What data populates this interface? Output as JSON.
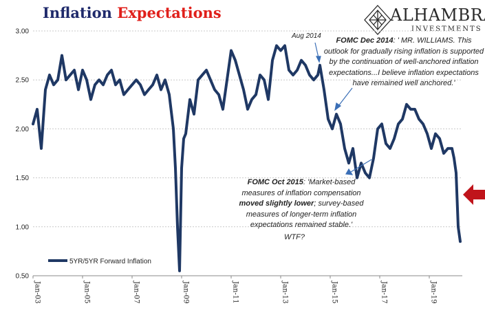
{
  "header": {
    "title_part1": "Inflation",
    "title_part2": "Expectations",
    "logo_name": "ALHAMBRA",
    "logo_sub": "INVESTMENTS"
  },
  "annotations": {
    "aug2014": "Aug 2014",
    "fomc_dec2014": {
      "lead": "FOMC Dec 2014",
      "text": ": ' MR. WILLIAMS. This outlook for gradually rising inflation is supported by the continuation of well-anchored inflation expectations...I believe inflation expectations have remained well anchored.'"
    },
    "fomc_oct2015": {
      "lead": "FOMC Oct 2015",
      "text1": ": 'Market-based measures of inflation compensation ",
      "bold": "moved slightly lower",
      "text2": "; survey-based measures of longer-term inflation expectations remained stable.'"
    },
    "wtf": "WTF?"
  },
  "colors": {
    "series": "#1f3864",
    "arrow": "#c0141b",
    "title_blue": "#1f2a6b",
    "title_red": "#e0201b"
  },
  "chart_data": {
    "type": "line",
    "title": "Inflation Expectations",
    "xlabel": "",
    "ylabel": "",
    "ylim": [
      0.5,
      3.0
    ],
    "xlim": [
      "2003-01",
      "2020-05"
    ],
    "yticks": [
      "0.50",
      "1.00",
      "1.50",
      "2.00",
      "2.50",
      "3.00"
    ],
    "xticks": [
      "Jan-03",
      "Jan-05",
      "Jan-07",
      "Jan-09",
      "Jan-11",
      "Jan-13",
      "Jan-15",
      "Jan-17",
      "Jan-19"
    ],
    "grid": "horizontal dashed",
    "legend": {
      "position": "bottom-left",
      "entries": [
        "5YR/5YR Forward Inflation"
      ]
    },
    "series": [
      {
        "name": "5YR/5YR Forward Inflation",
        "x": [
          "2003-01",
          "2003-03",
          "2003-05",
          "2003-07",
          "2003-09",
          "2003-11",
          "2004-01",
          "2004-03",
          "2004-05",
          "2004-07",
          "2004-09",
          "2004-11",
          "2005-01",
          "2005-03",
          "2005-05",
          "2005-07",
          "2005-09",
          "2005-11",
          "2006-01",
          "2006-03",
          "2006-05",
          "2006-07",
          "2006-09",
          "2006-11",
          "2007-01",
          "2007-03",
          "2007-05",
          "2007-07",
          "2007-09",
          "2007-11",
          "2008-01",
          "2008-03",
          "2008-05",
          "2008-07",
          "2008-09",
          "2008-10",
          "2008-11",
          "2008-12",
          "2009-01",
          "2009-02",
          "2009-03",
          "2009-05",
          "2009-07",
          "2009-09",
          "2009-11",
          "2010-01",
          "2010-03",
          "2010-05",
          "2010-07",
          "2010-09",
          "2010-11",
          "2011-01",
          "2011-03",
          "2011-05",
          "2011-07",
          "2011-09",
          "2011-11",
          "2012-01",
          "2012-03",
          "2012-05",
          "2012-07",
          "2012-09",
          "2012-11",
          "2013-01",
          "2013-03",
          "2013-05",
          "2013-07",
          "2013-09",
          "2013-11",
          "2014-01",
          "2014-03",
          "2014-05",
          "2014-07",
          "2014-08",
          "2014-10",
          "2014-12",
          "2015-02",
          "2015-04",
          "2015-06",
          "2015-08",
          "2015-10",
          "2015-12",
          "2016-02",
          "2016-04",
          "2016-06",
          "2016-08",
          "2016-10",
          "2016-12",
          "2017-02",
          "2017-04",
          "2017-06",
          "2017-08",
          "2017-10",
          "2017-12",
          "2018-02",
          "2018-04",
          "2018-06",
          "2018-08",
          "2018-10",
          "2018-12",
          "2019-02",
          "2019-04",
          "2019-06",
          "2019-08",
          "2019-10",
          "2019-12",
          "2020-01",
          "2020-02",
          "2020-03",
          "2020-04"
        ],
        "values": [
          2.05,
          2.2,
          1.8,
          2.4,
          2.55,
          2.45,
          2.5,
          2.75,
          2.5,
          2.55,
          2.6,
          2.4,
          2.6,
          2.5,
          2.3,
          2.45,
          2.5,
          2.45,
          2.55,
          2.6,
          2.45,
          2.5,
          2.35,
          2.4,
          2.45,
          2.5,
          2.45,
          2.35,
          2.4,
          2.45,
          2.55,
          2.4,
          2.5,
          2.35,
          2.0,
          1.6,
          1.0,
          0.55,
          1.6,
          1.9,
          1.95,
          2.3,
          2.15,
          2.5,
          2.55,
          2.6,
          2.5,
          2.4,
          2.35,
          2.2,
          2.5,
          2.8,
          2.7,
          2.55,
          2.4,
          2.2,
          2.3,
          2.35,
          2.55,
          2.5,
          2.3,
          2.7,
          2.85,
          2.8,
          2.85,
          2.6,
          2.55,
          2.6,
          2.7,
          2.65,
          2.55,
          2.5,
          2.55,
          2.65,
          2.4,
          2.1,
          2.0,
          2.15,
          2.05,
          1.8,
          1.65,
          1.8,
          1.5,
          1.65,
          1.55,
          1.5,
          1.7,
          2.0,
          2.05,
          1.85,
          1.8,
          1.9,
          2.05,
          2.1,
          2.25,
          2.2,
          2.2,
          2.1,
          2.05,
          1.95,
          1.8,
          1.95,
          1.9,
          1.75,
          1.8,
          1.8,
          1.7,
          1.55,
          1.0,
          0.85
        ]
      }
    ]
  }
}
